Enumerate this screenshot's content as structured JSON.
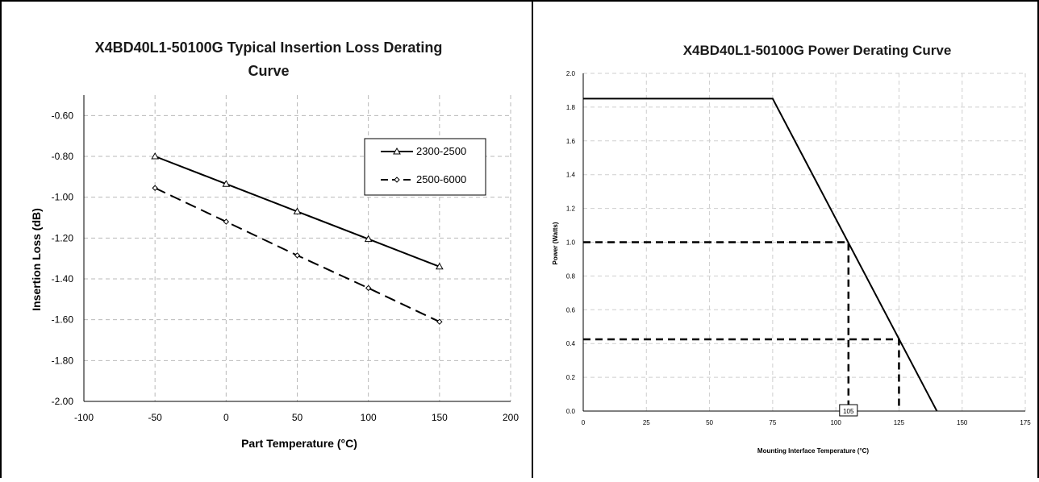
{
  "chart_data": [
    {
      "type": "line",
      "title": "X4BD40L1-50100G Typical Insertion Loss Derating Curve",
      "title_lines": [
        "X4BD40L1-50100G Typical Insertion Loss Derating",
        "Curve"
      ],
      "xlabel": "Part Temperature (°C)",
      "ylabel": "Insertion Loss (dB)",
      "xlim": [
        -100,
        200
      ],
      "ylim": [
        -2.0,
        -0.5
      ],
      "xticks": [
        -100,
        -50,
        0,
        50,
        100,
        150,
        200
      ],
      "xtick_labels": [
        "-100",
        "-50",
        "0",
        "50",
        "100",
        "150",
        "200"
      ],
      "yticks": [
        -0.6,
        -0.8,
        -1.0,
        -1.2,
        -1.4,
        -1.6,
        -1.8,
        -2.0
      ],
      "ytick_labels": [
        "-0.60",
        "-0.80",
        "-1.00",
        "-1.20",
        "-1.40",
        "-1.60",
        "-1.80",
        "-2.00"
      ],
      "grid": true,
      "legend_position": "top-right",
      "x": [
        -50,
        0,
        50,
        100,
        150
      ],
      "series": [
        {
          "name": "2300-2500",
          "values": [
            -0.8,
            -0.935,
            -1.07,
            -1.205,
            -1.34
          ],
          "style": "solid",
          "marker": "triangle",
          "color": "#000000"
        },
        {
          "name": "2500-6000",
          "values": [
            -0.955,
            -1.12,
            -1.285,
            -1.445,
            -1.61
          ],
          "style": "dashed",
          "marker": "diamond",
          "color": "#000000"
        }
      ]
    },
    {
      "type": "line",
      "title": "X4BD40L1-50100G Power Derating Curve",
      "xlabel": "Mounting Interface Temperature (°C)",
      "ylabel": "Power (Watts)",
      "xlim": [
        0,
        175
      ],
      "ylim": [
        0,
        2.0
      ],
      "xticks": [
        0,
        25,
        50,
        75,
        100,
        125,
        150,
        175
      ],
      "xtick_labels": [
        "0",
        "25",
        "50",
        "75",
        "100",
        "125",
        "150",
        "175"
      ],
      "yticks": [
        0.0,
        0.2,
        0.4,
        0.6,
        0.8,
        1.0,
        1.2,
        1.4,
        1.6,
        1.8,
        2.0
      ],
      "ytick_labels": [
        "0.0",
        "0.2",
        "0.4",
        "0.6",
        "0.8",
        "1.0",
        "1.2",
        "1.4",
        "1.6",
        "1.8",
        "2.0"
      ],
      "grid": true,
      "series": [
        {
          "x": [
            0,
            75,
            140
          ],
          "values": [
            1.85,
            1.85,
            0
          ],
          "style": "solid",
          "color": "#000000"
        }
      ],
      "reference_lines": [
        {
          "x": [
            0,
            105,
            105
          ],
          "y": [
            1.0,
            1.0,
            0
          ],
          "style": "dashed"
        },
        {
          "x": [
            0,
            125,
            125
          ],
          "y": [
            0.425,
            0.425,
            0
          ],
          "style": "dashed"
        }
      ],
      "annotations": [
        {
          "text": "105",
          "x": 105,
          "y": 0
        }
      ]
    }
  ]
}
